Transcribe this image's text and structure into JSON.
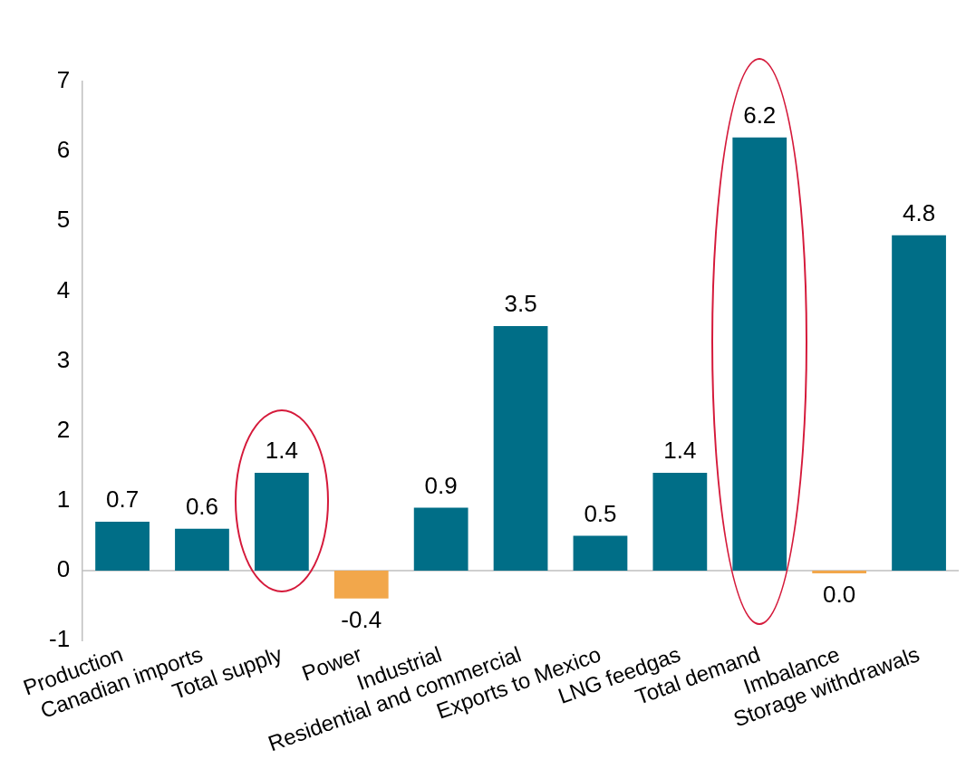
{
  "chart_data": {
    "type": "bar",
    "categories": [
      "Production",
      "Canadian imports",
      "Total supply",
      "Power",
      "Industrial",
      "Residential and commercial",
      "Exports to Mexico",
      "LNG feedgas",
      "Total demand",
      "Imbalance",
      "Storage withdrawals"
    ],
    "values": [
      0.7,
      0.6,
      1.4,
      -0.4,
      0.9,
      3.5,
      0.5,
      1.4,
      6.2,
      -0.04,
      4.8
    ],
    "colors": [
      "#006e87",
      "#006e87",
      "#006e87",
      "#f2a74b",
      "#006e87",
      "#006e87",
      "#006e87",
      "#006e87",
      "#006e87",
      "#f2a74b",
      "#006e87"
    ],
    "value_labels": [
      "0.7",
      "0.6",
      "1.4",
      "-0.4",
      "0.9",
      "3.5",
      "0.5",
      "1.4",
      "6.2",
      "0.0",
      "4.8"
    ],
    "ref_lines": [
      {
        "axis": "y",
        "value": 0,
        "color": "#bfbfbf"
      }
    ],
    "ylim": [
      -1,
      7
    ],
    "yticks": [
      -1,
      0,
      1,
      2,
      3,
      4,
      5,
      6,
      7
    ],
    "grid": false,
    "legend": false
  }
}
